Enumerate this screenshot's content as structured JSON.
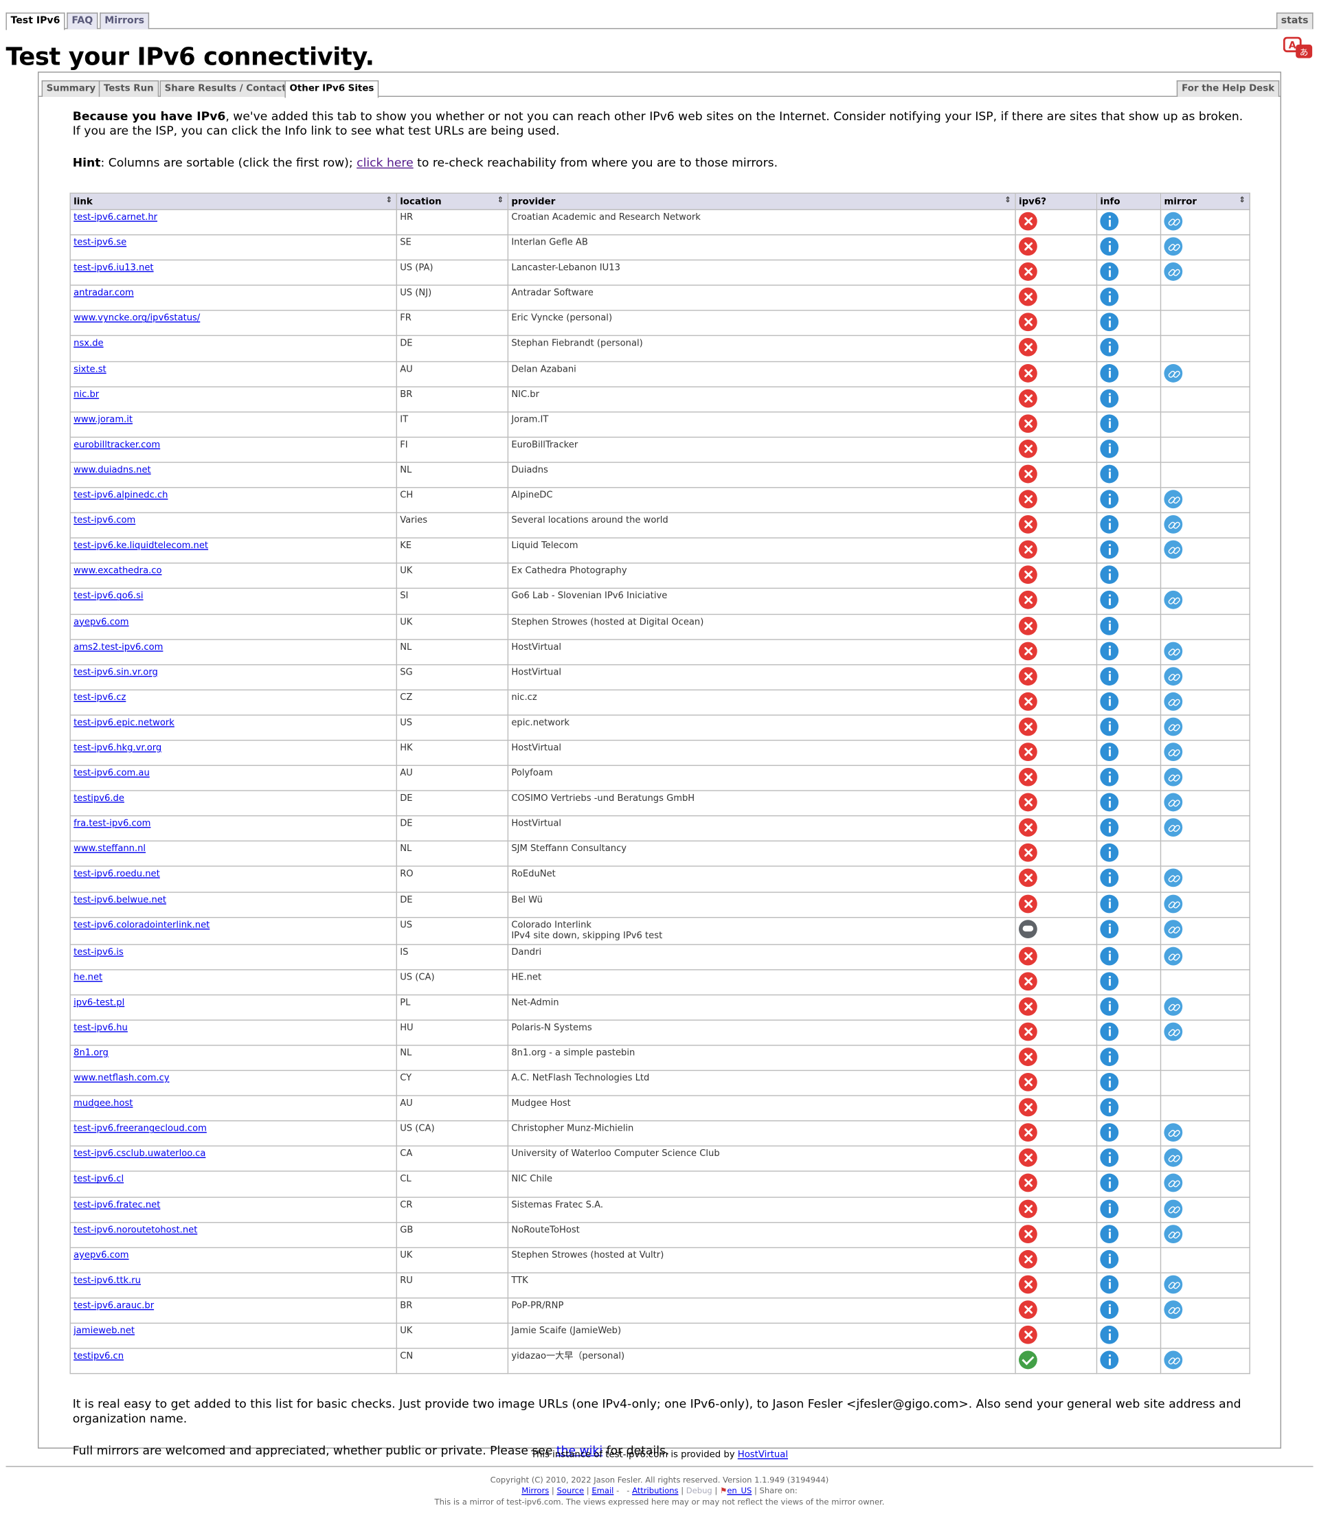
{
  "top_tabs": {
    "test_ipv6": "Test IPv6",
    "faq": "FAQ",
    "mirrors": "Mirrors",
    "stats": "stats"
  },
  "page_title": "Test your IPv6 connectivity.",
  "sub_tabs": {
    "summary": "Summary",
    "tests_run": "Tests Run",
    "share_results": "Share Results / Contact",
    "other_sites": "Other IPv6 Sites",
    "help_desk": "For the Help Desk"
  },
  "intro": {
    "bold": "Because you have IPv6",
    "text": ", we've added this tab to show you whether or not you can reach other IPv6 web sites on the Internet. Consider notifying your ISP, if there are sites that show up as broken. If you are the ISP, you can click the Info link to see what test URLs are being used."
  },
  "hint": {
    "bold": "Hint",
    "text1": ": Columns are sortable (click the first row); ",
    "link": "click here",
    "text2": " to re-check reachability from where you are to those mirrors."
  },
  "table": {
    "headers": {
      "link": "link",
      "location": "location",
      "provider": "provider",
      "ipv6": "ipv6?",
      "info": "info",
      "mirror": "mirror"
    },
    "rows": [
      {
        "link": "test-ipv6.carnet.hr",
        "location": "HR",
        "provider": "Croatian Academic and Research Network",
        "status": "fail",
        "mirror": true
      },
      {
        "link": "test-ipv6.se",
        "location": "SE",
        "provider": "Interlan Gefle AB",
        "status": "fail",
        "mirror": true
      },
      {
        "link": "test-ipv6.iu13.net",
        "location": "US (PA)",
        "provider": "Lancaster-Lebanon IU13",
        "status": "fail",
        "mirror": true
      },
      {
        "link": "antradar.com",
        "location": "US (NJ)",
        "provider": "Antradar Software",
        "status": "fail",
        "mirror": false
      },
      {
        "link": "www.vyncke.org/ipv6status/",
        "location": "FR",
        "provider": "Eric Vyncke (personal)",
        "status": "fail",
        "mirror": false
      },
      {
        "link": "nsx.de",
        "location": "DE",
        "provider": "Stephan Fiebrandt (personal)",
        "status": "fail",
        "mirror": false
      },
      {
        "link": "sixte.st",
        "location": "AU",
        "provider": "Delan Azabani",
        "status": "fail",
        "mirror": true
      },
      {
        "link": "nic.br",
        "location": "BR",
        "provider": "NIC.br",
        "status": "fail",
        "mirror": false
      },
      {
        "link": "www.joram.it",
        "location": "IT",
        "provider": "Joram.IT",
        "status": "fail",
        "mirror": false
      },
      {
        "link": "eurobilltracker.com",
        "location": "FI",
        "provider": "EuroBillTracker",
        "status": "fail",
        "mirror": false
      },
      {
        "link": "www.duiadns.net",
        "location": "NL",
        "provider": "Duiadns",
        "status": "fail",
        "mirror": false
      },
      {
        "link": "test-ipv6.alpinedc.ch",
        "location": "CH",
        "provider": "AlpineDC",
        "status": "fail",
        "mirror": true
      },
      {
        "link": "test-ipv6.com",
        "location": "Varies",
        "provider": "Several locations around the world",
        "status": "fail",
        "mirror": true
      },
      {
        "link": "test-ipv6.ke.liquidtelecom.net",
        "location": "KE",
        "provider": "Liquid Telecom",
        "status": "fail",
        "mirror": true
      },
      {
        "link": "www.excathedra.co",
        "location": "UK",
        "provider": "Ex Cathedra Photography",
        "status": "fail",
        "mirror": false
      },
      {
        "link": "test-ipv6.go6.si",
        "location": "SI",
        "provider": "Go6 Lab - Slovenian IPv6 Iniciative",
        "status": "fail",
        "mirror": true
      },
      {
        "link": "ayepv6.com",
        "location": "UK",
        "provider": "Stephen Strowes (hosted at Digital Ocean)",
        "status": "fail",
        "mirror": false
      },
      {
        "link": "ams2.test-ipv6.com",
        "location": "NL",
        "provider": "HostVirtual",
        "status": "fail",
        "mirror": true
      },
      {
        "link": "test-ipv6.sin.vr.org",
        "location": "SG",
        "provider": "HostVirtual",
        "status": "fail",
        "mirror": true
      },
      {
        "link": "test-ipv6.cz",
        "location": "CZ",
        "provider": "nic.cz",
        "status": "fail",
        "mirror": true
      },
      {
        "link": "test-ipv6.epic.network",
        "location": "US",
        "provider": "epic.network",
        "status": "fail",
        "mirror": true
      },
      {
        "link": "test-ipv6.hkg.vr.org",
        "location": "HK",
        "provider": "HostVirtual",
        "status": "fail",
        "mirror": true
      },
      {
        "link": "test-ipv6.com.au",
        "location": "AU",
        "provider": "Polyfoam",
        "status": "fail",
        "mirror": true
      },
      {
        "link": "testipv6.de",
        "location": "DE",
        "provider": "COSIMO Vertriebs -und Beratungs GmbH",
        "status": "fail",
        "mirror": true
      },
      {
        "link": "fra.test-ipv6.com",
        "location": "DE",
        "provider": "HostVirtual",
        "status": "fail",
        "mirror": true
      },
      {
        "link": "www.steffann.nl",
        "location": "NL",
        "provider": "SJM Steffann Consultancy",
        "status": "fail",
        "mirror": false
      },
      {
        "link": "test-ipv6.roedu.net",
        "location": "RO",
        "provider": "RoEduNet",
        "status": "fail",
        "mirror": true
      },
      {
        "link": "test-ipv6.belwue.net",
        "location": "DE",
        "provider": "Bel Wü",
        "status": "fail",
        "mirror": true
      },
      {
        "link": "test-ipv6.coloradointerlink.net",
        "location": "US",
        "provider": "Colorado Interlink",
        "provider_note": "IPv4 site down, skipping IPv6 test",
        "status": "skip",
        "mirror": true
      },
      {
        "link": "test-ipv6.is",
        "location": "IS",
        "provider": "Dandri",
        "status": "fail",
        "mirror": true
      },
      {
        "link": "he.net",
        "location": "US (CA)",
        "provider": "HE.net",
        "status": "fail",
        "mirror": false
      },
      {
        "link": "ipv6-test.pl",
        "location": "PL",
        "provider": "Net-Admin",
        "status": "fail",
        "mirror": true
      },
      {
        "link": "test-ipv6.hu",
        "location": "HU",
        "provider": "Polaris-N Systems",
        "status": "fail",
        "mirror": true
      },
      {
        "link": "8n1.org",
        "location": "NL",
        "provider": "8n1.org - a simple pastebin",
        "status": "fail",
        "mirror": false
      },
      {
        "link": "www.netflash.com.cy",
        "location": "CY",
        "provider": "A.C. NetFlash Technologies Ltd",
        "status": "fail",
        "mirror": false
      },
      {
        "link": "mudgee.host",
        "location": "AU",
        "provider": "Mudgee Host",
        "status": "fail",
        "mirror": false
      },
      {
        "link": "test-ipv6.freerangecloud.com",
        "location": "US (CA)",
        "provider": "Christopher Munz-Michielin",
        "status": "fail",
        "mirror": true
      },
      {
        "link": "test-ipv6.csclub.uwaterloo.ca",
        "location": "CA",
        "provider": "University of Waterloo Computer Science Club",
        "status": "fail",
        "mirror": true
      },
      {
        "link": "test-ipv6.cl",
        "location": "CL",
        "provider": "NIC Chile",
        "status": "fail",
        "mirror": true
      },
      {
        "link": "test-ipv6.fratec.net",
        "location": "CR",
        "provider": "Sistemas Fratec S.A.",
        "status": "fail",
        "mirror": true
      },
      {
        "link": "test-ipv6.noroutetohost.net",
        "location": "GB",
        "provider": "NoRouteToHost",
        "status": "fail",
        "mirror": true
      },
      {
        "link": "ayepv6.com",
        "location": "UK",
        "provider": "Stephen Strowes (hosted at Vultr)",
        "status": "fail",
        "mirror": false
      },
      {
        "link": "test-ipv6.ttk.ru",
        "location": "RU",
        "provider": "TTK",
        "status": "fail",
        "mirror": true
      },
      {
        "link": "test-ipv6.arauc.br",
        "location": "BR",
        "provider": "PoP-PR/RNP",
        "status": "fail",
        "mirror": true
      },
      {
        "link": "jamieweb.net",
        "location": "UK",
        "provider": "Jamie Scaife (JamieWeb)",
        "status": "fail",
        "mirror": false
      },
      {
        "link": "testipv6.cn",
        "location": "CN",
        "provider": "yidazao一大早（personal)",
        "status": "ok",
        "mirror": true
      }
    ]
  },
  "tail": {
    "p1": "It is real easy to get added to this list for basic checks. Just provide two image URLs (one IPv4-only; one IPv6-only), to Jason Fesler <jfesler@gigo.com>. Also send your general web site address and organization name.",
    "p2_text1": "Full mirrors are welcomed and appreciated, whether public or private. Please see ",
    "p2_link": "the wiki",
    "p2_text2": " for details."
  },
  "provided_by": {
    "text": "This instance of test-ipv6.com is provided by ",
    "link": "HostVirtual"
  },
  "footer": {
    "copyright": "Copyright (C) 2010, 2022 Jason Fesler. All rights reserved. Version 1.1.949 (3194944)",
    "mirrors": "Mirrors",
    "source": "Source",
    "email": "Email",
    "attributions": "Attributions",
    "debug": "Debug",
    "locale": "en_US",
    "share_on": "Share on:",
    "mirror_note": "This is a mirror of test-ipv6.com. The views expressed here may or may not reflect the views of the mirror owner."
  }
}
